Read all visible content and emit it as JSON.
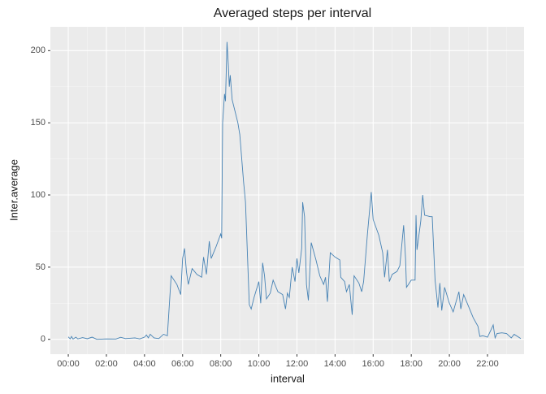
{
  "chart_data": {
    "type": "line",
    "title": "Averaged steps per interval",
    "x_label": "interval",
    "y_label": "Inter.average",
    "color": "#4682b4",
    "grid": true,
    "x": [
      0,
      0.1,
      0.17,
      0.25,
      0.4,
      0.5,
      0.75,
      1.0,
      1.25,
      1.5,
      2.0,
      2.5,
      2.75,
      3.0,
      3.5,
      3.75,
      4.0,
      4.1,
      4.2,
      4.3,
      4.5,
      4.75,
      5.0,
      5.2,
      5.4,
      5.7,
      5.9,
      6.0,
      6.1,
      6.2,
      6.3,
      6.5,
      6.75,
      7.0,
      7.1,
      7.25,
      7.4,
      7.5,
      7.75,
      8.0,
      8.05,
      8.1,
      8.2,
      8.25,
      8.33,
      8.4,
      8.45,
      8.5,
      8.6,
      8.9,
      9.0,
      9.2,
      9.3,
      9.5,
      9.6,
      9.75,
      10.0,
      10.1,
      10.2,
      10.3,
      10.4,
      10.6,
      10.75,
      11.0,
      11.25,
      11.4,
      11.5,
      11.6,
      11.75,
      11.9,
      12.0,
      12.1,
      12.25,
      12.3,
      12.4,
      12.5,
      12.6,
      12.75,
      13.0,
      13.2,
      13.4,
      13.5,
      13.6,
      13.75,
      14.0,
      14.25,
      14.3,
      14.5,
      14.6,
      14.75,
      14.9,
      15.0,
      15.25,
      15.4,
      15.5,
      15.7,
      15.9,
      16.0,
      16.3,
      16.5,
      16.6,
      16.75,
      16.85,
      17.0,
      17.25,
      17.4,
      17.6,
      17.7,
      17.75,
      18.0,
      18.2,
      18.25,
      18.3,
      18.5,
      18.6,
      18.7,
      19.0,
      19.1,
      19.25,
      19.4,
      19.5,
      19.6,
      19.75,
      20.0,
      20.2,
      20.5,
      20.6,
      20.75,
      21.0,
      21.25,
      21.5,
      21.6,
      21.75,
      22.0,
      22.2,
      22.3,
      22.4,
      22.5,
      22.75,
      23.0,
      23.25,
      23.4,
      23.75
    ],
    "values": [
      1.7,
      0.3,
      2,
      0.2,
      1.5,
      0.3,
      1.2,
      0.4,
      1.5,
      0,
      0.3,
      0.2,
      1.4,
      0.5,
      1,
      0.3,
      1.5,
      3,
      1,
      3.5,
      1,
      0.5,
      3.5,
      2.5,
      44,
      38,
      31,
      56,
      63,
      47,
      38,
      49,
      45,
      43,
      57,
      45,
      68,
      56,
      64,
      73,
      70,
      150,
      170,
      165,
      206,
      190,
      175,
      183,
      166,
      150,
      142,
      109,
      95,
      24,
      21,
      29,
      40,
      25,
      53,
      44,
      28,
      32,
      41,
      33,
      31,
      21,
      32,
      29,
      50,
      40,
      56,
      46,
      63,
      95,
      85,
      38,
      27,
      67,
      55,
      44,
      38,
      43,
      26,
      60,
      57,
      55,
      43,
      40,
      33,
      38,
      17,
      44,
      39,
      33,
      40,
      73,
      102,
      83,
      72,
      60,
      43,
      62,
      40,
      45,
      47,
      51,
      79,
      56,
      36,
      41,
      41,
      86,
      62,
      82,
      100,
      86,
      85,
      85,
      41,
      22,
      39,
      20,
      36,
      25,
      19,
      33,
      21,
      31,
      23,
      15,
      9,
      2,
      2.5,
      1.5,
      7,
      10,
      1,
      4,
      4.5,
      4,
      1,
      3.5,
      0.5
    ],
    "xlim": [
      -0.94,
      23.92
    ],
    "ylim": [
      -10.3,
      216.5
    ],
    "xticks": [
      {
        "value": 0,
        "label": "00:00"
      },
      {
        "value": 2,
        "label": "02:00"
      },
      {
        "value": 4,
        "label": "04:00"
      },
      {
        "value": 6,
        "label": "06:00"
      },
      {
        "value": 8,
        "label": "08:00"
      },
      {
        "value": 10,
        "label": "10:00"
      },
      {
        "value": 12,
        "label": "12:00"
      },
      {
        "value": 14,
        "label": "14:00"
      },
      {
        "value": 16,
        "label": "16:00"
      },
      {
        "value": 18,
        "label": "18:00"
      },
      {
        "value": 20,
        "label": "20:00"
      },
      {
        "value": 22,
        "label": "22:00"
      }
    ],
    "yticks": [
      0,
      50,
      100,
      150,
      200
    ],
    "x_minor_ticks": [
      1,
      3,
      5,
      7,
      9,
      11,
      13,
      15,
      17,
      19,
      21,
      23
    ],
    "y_minor_ticks": [
      25,
      75,
      125,
      175
    ]
  }
}
